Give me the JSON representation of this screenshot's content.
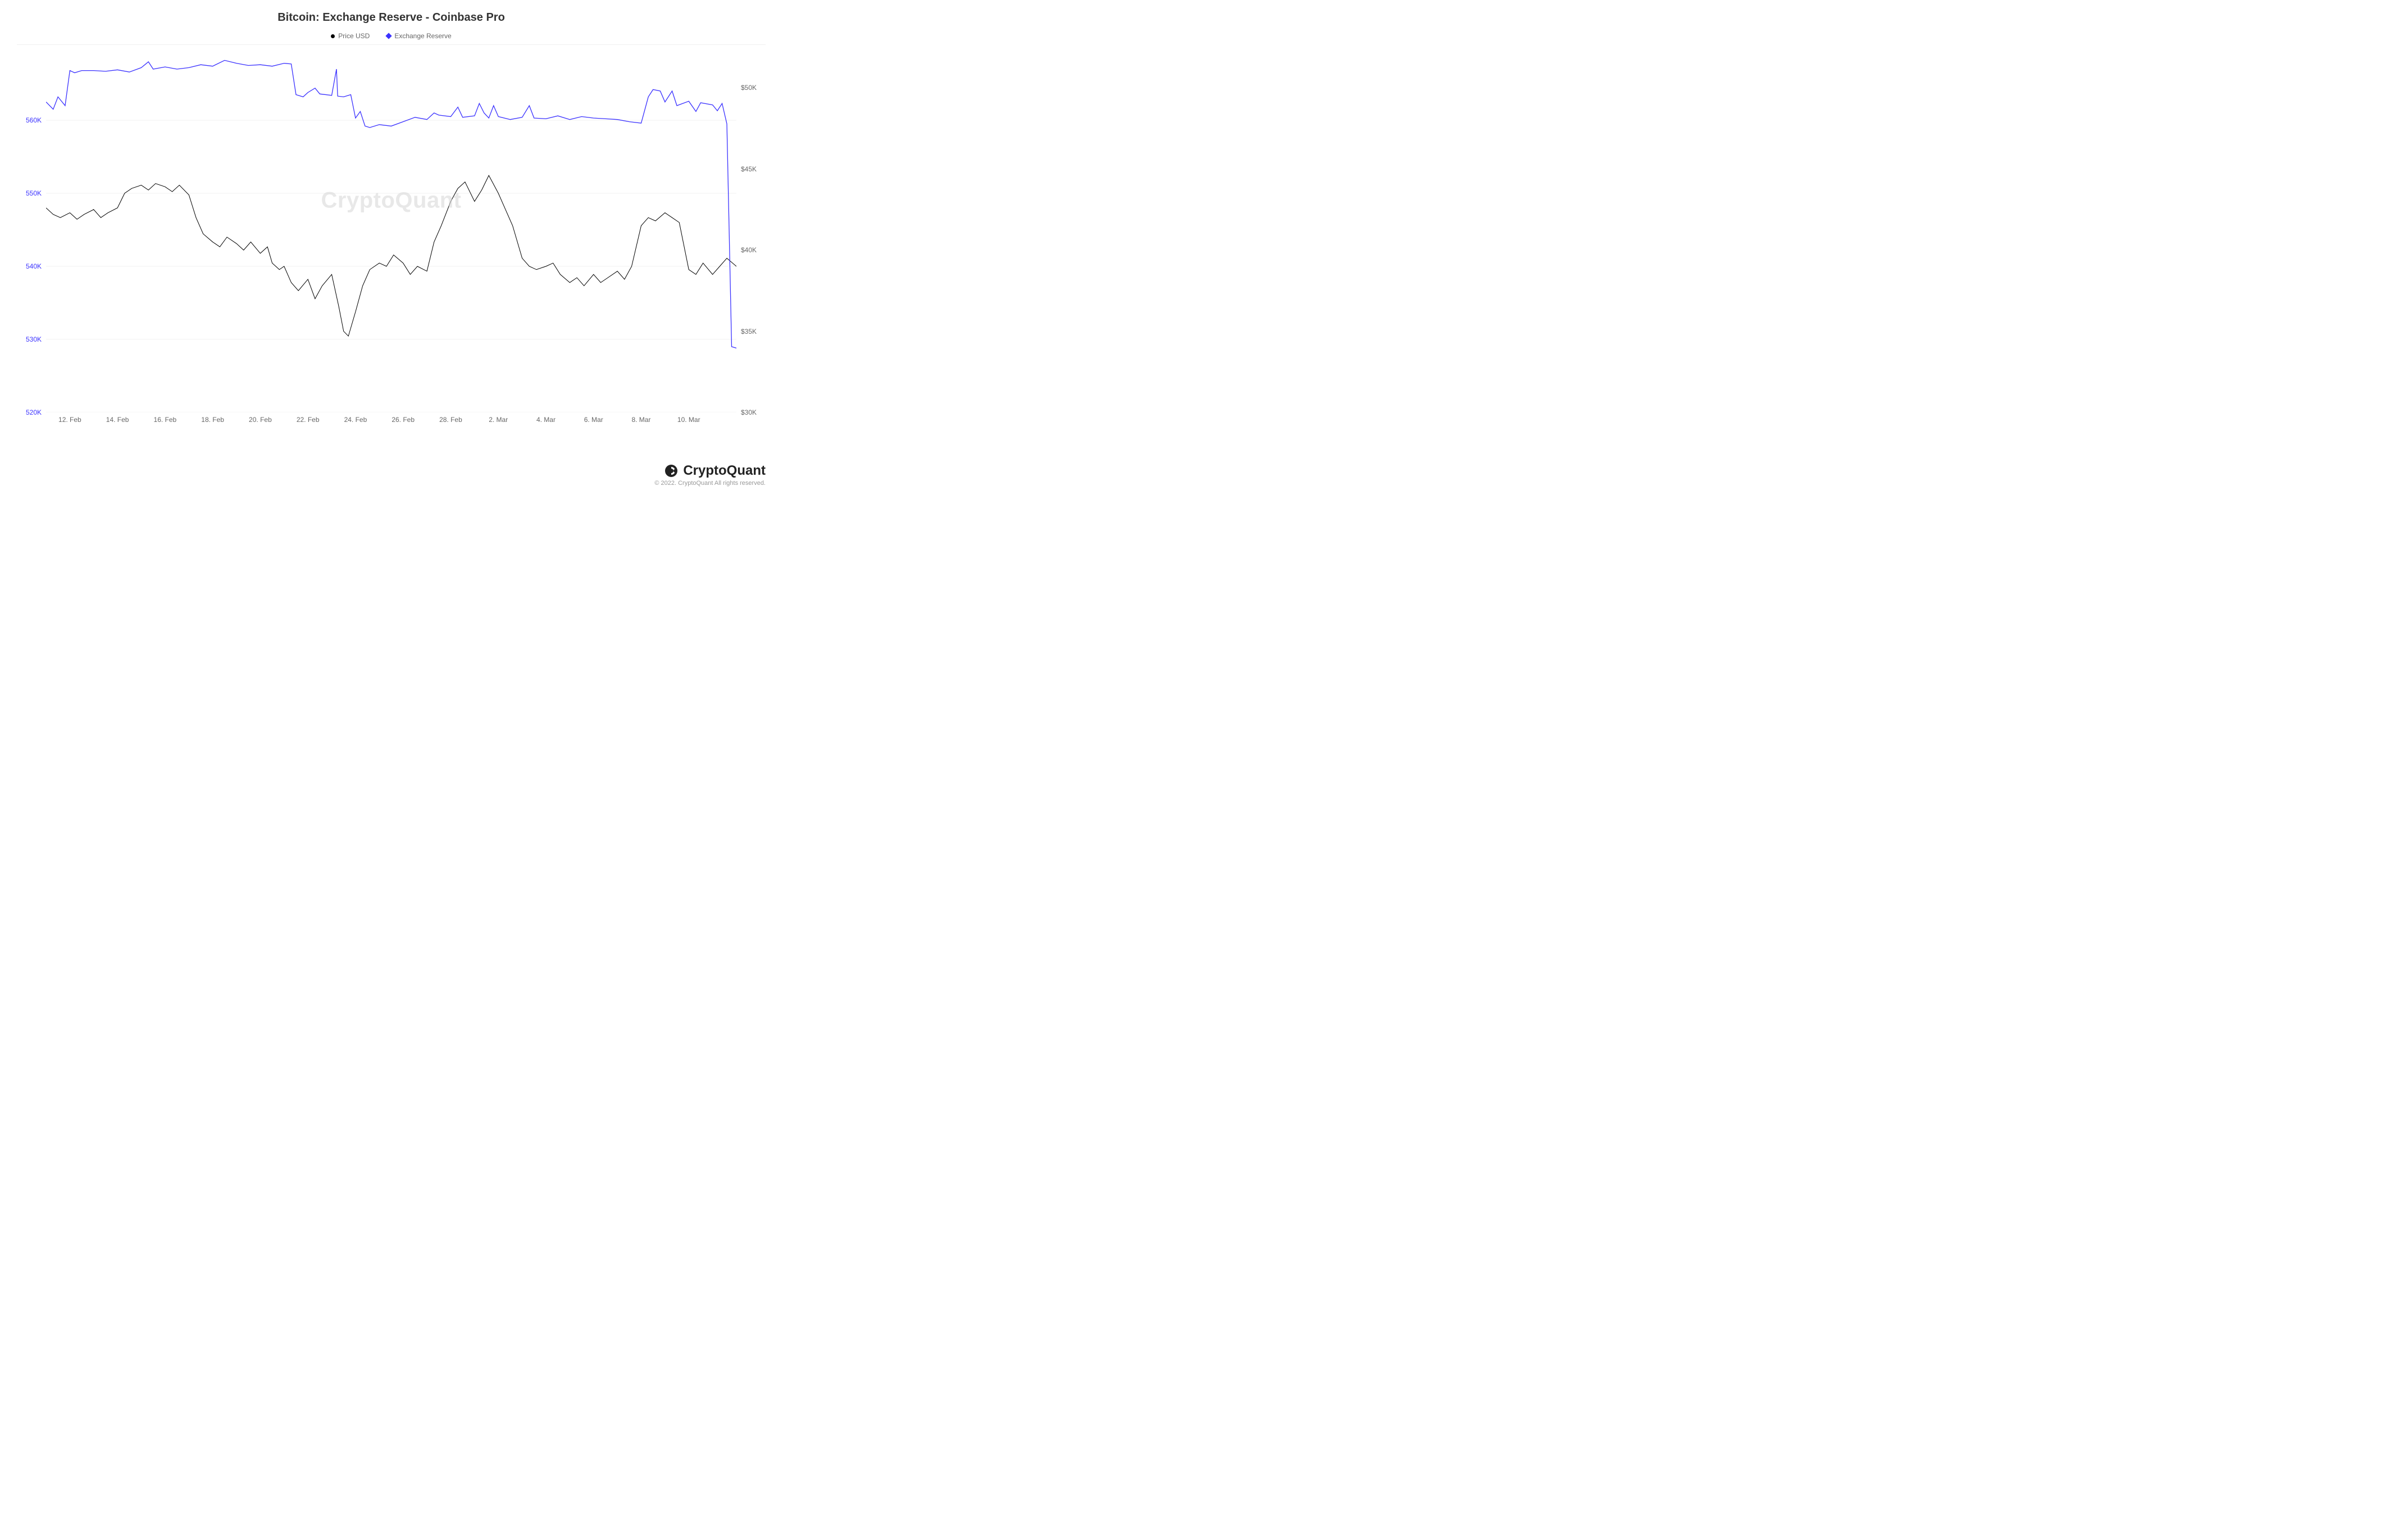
{
  "chart": {
    "type": "line-dual-axis",
    "title": "Bitcoin: Exchange Reserve - Coinbase Pro",
    "watermark": "CryptoQuant",
    "background_color": "#ffffff",
    "grid_color": "#f0f0f0",
    "title_fontsize": 20,
    "axis_label_fontsize": 12,
    "legend": {
      "items": [
        {
          "label": "Price USD",
          "marker": "circle",
          "color": "#000000"
        },
        {
          "label": "Exchange Reserve",
          "marker": "diamond",
          "color": "#3b32ff"
        }
      ]
    },
    "x_axis": {
      "ticks": [
        "12. Feb",
        "14. Feb",
        "16. Feb",
        "18. Feb",
        "20. Feb",
        "22. Feb",
        "24. Feb",
        "26. Feb",
        "28. Feb",
        "2. Mar",
        "4. Mar",
        "6. Mar",
        "8. Mar",
        "10. Mar"
      ],
      "tick_color": "#666666",
      "domain_index_max": 29
    },
    "y_left": {
      "label_color": "#3b32ff",
      "min": 520,
      "max": 570,
      "ticks": [
        520,
        530,
        540,
        550,
        560
      ],
      "tick_labels": [
        "520K",
        "530K",
        "540K",
        "550K",
        "560K"
      ],
      "unit": "K"
    },
    "y_right": {
      "label_color": "#666666",
      "min": 30,
      "max": 52.5,
      "ticks": [
        30,
        35,
        40,
        45,
        50
      ],
      "tick_labels": [
        "$30K",
        "$35K",
        "$40K",
        "$45K",
        "$50K"
      ],
      "unit": "$K"
    },
    "series": {
      "exchange_reserve": {
        "color": "#3b32ff",
        "line_width": 1.3,
        "axis": "left",
        "data": [
          [
            0,
            562.5
          ],
          [
            0.3,
            561.5
          ],
          [
            0.5,
            563.2
          ],
          [
            0.8,
            562.0
          ],
          [
            1.0,
            566.8
          ],
          [
            1.2,
            566.5
          ],
          [
            1.5,
            566.8
          ],
          [
            2.0,
            566.8
          ],
          [
            2.5,
            566.7
          ],
          [
            3.0,
            566.9
          ],
          [
            3.5,
            566.6
          ],
          [
            4.0,
            567.2
          ],
          [
            4.3,
            568.0
          ],
          [
            4.5,
            567.0
          ],
          [
            5.0,
            567.3
          ],
          [
            5.5,
            567.0
          ],
          [
            6.0,
            567.2
          ],
          [
            6.5,
            567.6
          ],
          [
            7.0,
            567.4
          ],
          [
            7.5,
            568.2
          ],
          [
            8.0,
            567.8
          ],
          [
            8.5,
            567.5
          ],
          [
            9.0,
            567.6
          ],
          [
            9.5,
            567.4
          ],
          [
            10.0,
            567.8
          ],
          [
            10.3,
            567.7
          ],
          [
            10.5,
            563.5
          ],
          [
            10.8,
            563.2
          ],
          [
            11.0,
            563.8
          ],
          [
            11.3,
            564.4
          ],
          [
            11.5,
            563.6
          ],
          [
            12.0,
            563.4
          ],
          [
            12.2,
            567.0
          ],
          [
            12.25,
            563.3
          ],
          [
            12.5,
            563.2
          ],
          [
            12.8,
            563.5
          ],
          [
            13.0,
            560.3
          ],
          [
            13.2,
            561.2
          ],
          [
            13.4,
            559.2
          ],
          [
            13.6,
            559.0
          ],
          [
            14.0,
            559.4
          ],
          [
            14.5,
            559.2
          ],
          [
            15.0,
            559.8
          ],
          [
            15.5,
            560.4
          ],
          [
            16.0,
            560.1
          ],
          [
            16.3,
            561.0
          ],
          [
            16.5,
            560.7
          ],
          [
            17.0,
            560.5
          ],
          [
            17.3,
            561.8
          ],
          [
            17.5,
            560.4
          ],
          [
            18.0,
            560.6
          ],
          [
            18.2,
            562.3
          ],
          [
            18.4,
            561.0
          ],
          [
            18.6,
            560.3
          ],
          [
            18.8,
            562.0
          ],
          [
            19.0,
            560.5
          ],
          [
            19.5,
            560.1
          ],
          [
            20.0,
            560.4
          ],
          [
            20.3,
            562.0
          ],
          [
            20.5,
            560.3
          ],
          [
            21.0,
            560.2
          ],
          [
            21.5,
            560.6
          ],
          [
            22.0,
            560.1
          ],
          [
            22.5,
            560.5
          ],
          [
            23.0,
            560.3
          ],
          [
            23.5,
            560.2
          ],
          [
            24.0,
            560.1
          ],
          [
            24.5,
            559.8
          ],
          [
            25.0,
            559.6
          ],
          [
            25.3,
            563.2
          ],
          [
            25.5,
            564.2
          ],
          [
            25.8,
            564.0
          ],
          [
            26.0,
            562.5
          ],
          [
            26.3,
            564.0
          ],
          [
            26.5,
            562.0
          ],
          [
            27.0,
            562.6
          ],
          [
            27.3,
            561.2
          ],
          [
            27.5,
            562.4
          ],
          [
            28.0,
            562.1
          ],
          [
            28.2,
            561.3
          ],
          [
            28.4,
            562.3
          ],
          [
            28.6,
            559.5
          ],
          [
            28.8,
            529.0
          ],
          [
            29.0,
            528.8
          ],
          [
            29.2,
            529.2
          ]
        ]
      },
      "price_usd": {
        "color": "#000000",
        "line_width": 1.0,
        "axis": "right",
        "data": [
          [
            0,
            42.6
          ],
          [
            0.3,
            42.2
          ],
          [
            0.6,
            42.0
          ],
          [
            1.0,
            42.3
          ],
          [
            1.3,
            41.9
          ],
          [
            1.6,
            42.2
          ],
          [
            2.0,
            42.5
          ],
          [
            2.3,
            42.0
          ],
          [
            2.6,
            42.3
          ],
          [
            3.0,
            42.6
          ],
          [
            3.3,
            43.5
          ],
          [
            3.6,
            43.8
          ],
          [
            4.0,
            44.0
          ],
          [
            4.3,
            43.7
          ],
          [
            4.6,
            44.1
          ],
          [
            5.0,
            43.9
          ],
          [
            5.3,
            43.6
          ],
          [
            5.6,
            44.0
          ],
          [
            6.0,
            43.4
          ],
          [
            6.3,
            42.0
          ],
          [
            6.6,
            41.0
          ],
          [
            7.0,
            40.5
          ],
          [
            7.3,
            40.2
          ],
          [
            7.6,
            40.8
          ],
          [
            8.0,
            40.4
          ],
          [
            8.3,
            40.0
          ],
          [
            8.6,
            40.5
          ],
          [
            9.0,
            39.8
          ],
          [
            9.3,
            40.2
          ],
          [
            9.5,
            39.2
          ],
          [
            9.8,
            38.8
          ],
          [
            10.0,
            39.0
          ],
          [
            10.3,
            38.0
          ],
          [
            10.6,
            37.5
          ],
          [
            11.0,
            38.2
          ],
          [
            11.3,
            37.0
          ],
          [
            11.6,
            37.8
          ],
          [
            12.0,
            38.5
          ],
          [
            12.3,
            36.5
          ],
          [
            12.5,
            35.0
          ],
          [
            12.7,
            34.7
          ],
          [
            13.0,
            36.2
          ],
          [
            13.3,
            37.8
          ],
          [
            13.6,
            38.8
          ],
          [
            14.0,
            39.2
          ],
          [
            14.3,
            39.0
          ],
          [
            14.6,
            39.7
          ],
          [
            15.0,
            39.2
          ],
          [
            15.3,
            38.5
          ],
          [
            15.6,
            39.0
          ],
          [
            16.0,
            38.7
          ],
          [
            16.3,
            40.5
          ],
          [
            16.6,
            41.5
          ],
          [
            17.0,
            43.0
          ],
          [
            17.3,
            43.8
          ],
          [
            17.6,
            44.2
          ],
          [
            18.0,
            43.0
          ],
          [
            18.3,
            43.7
          ],
          [
            18.6,
            44.6
          ],
          [
            19.0,
            43.5
          ],
          [
            19.3,
            42.5
          ],
          [
            19.6,
            41.5
          ],
          [
            20.0,
            39.5
          ],
          [
            20.3,
            39.0
          ],
          [
            20.6,
            38.8
          ],
          [
            21.0,
            39.0
          ],
          [
            21.3,
            39.2
          ],
          [
            21.6,
            38.5
          ],
          [
            22.0,
            38.0
          ],
          [
            22.3,
            38.3
          ],
          [
            22.6,
            37.8
          ],
          [
            23.0,
            38.5
          ],
          [
            23.3,
            38.0
          ],
          [
            23.6,
            38.3
          ],
          [
            24.0,
            38.7
          ],
          [
            24.3,
            38.2
          ],
          [
            24.6,
            39.0
          ],
          [
            25.0,
            41.5
          ],
          [
            25.3,
            42.0
          ],
          [
            25.6,
            41.8
          ],
          [
            26.0,
            42.3
          ],
          [
            26.3,
            42.0
          ],
          [
            26.6,
            41.7
          ],
          [
            27.0,
            38.8
          ],
          [
            27.3,
            38.5
          ],
          [
            27.6,
            39.2
          ],
          [
            28.0,
            38.5
          ],
          [
            28.3,
            39.0
          ],
          [
            28.6,
            39.5
          ],
          [
            29.0,
            39.0
          ],
          [
            29.2,
            39.6
          ]
        ]
      }
    }
  },
  "footer": {
    "brand": "CryptoQuant",
    "copyright": "© 2022. CryptoQuant All rights reserved."
  }
}
